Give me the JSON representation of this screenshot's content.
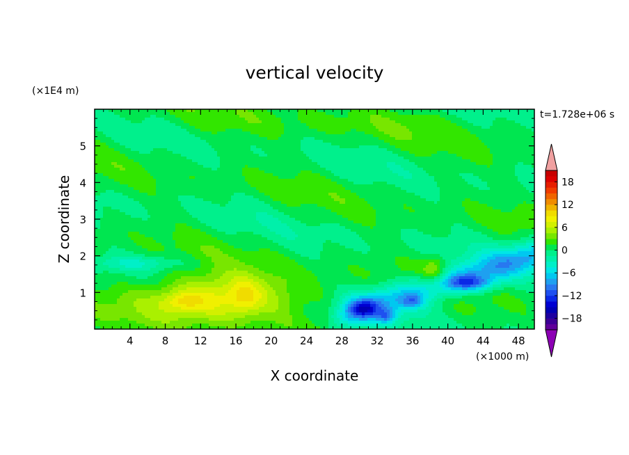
{
  "chart_data": {
    "type": "heatmap",
    "title": "vertical velocity",
    "xlabel": "X coordinate",
    "ylabel": "Z coordinate",
    "x_unit": "(×1000 m)",
    "y_unit": "(×1E4 m)",
    "time_label": "t=1.728e+06 s",
    "xlim": [
      0,
      49.8
    ],
    "ylim": [
      0,
      6.0
    ],
    "x_ticks": [
      "4",
      "8",
      "12",
      "16",
      "20",
      "24",
      "28",
      "32",
      "36",
      "40",
      "44",
      "48"
    ],
    "y_ticks": [
      "1",
      "2",
      "3",
      "4",
      "5"
    ],
    "colorbar": {
      "tick_labels": [
        "18",
        "12",
        "6",
        "0",
        "−6",
        "−12",
        "−18"
      ],
      "levels": [
        -21,
        -19.5,
        -18,
        -16.5,
        -15,
        -13.5,
        -12,
        -10.5,
        -9,
        -7.5,
        -6,
        -4.5,
        -3,
        -1.5,
        0,
        1.5,
        3,
        4.5,
        6,
        7.5,
        9,
        10.5,
        12,
        13.5,
        15,
        16.5,
        18,
        19.5,
        21
      ],
      "colors": [
        "#60009a",
        "#3c0096",
        "#1e00a0",
        "#0000b4",
        "#0000d2",
        "#0a28e6",
        "#1e50f0",
        "#2878f0",
        "#1ea0f0",
        "#00c8f0",
        "#00e6e6",
        "#00f0c8",
        "#00f0aa",
        "#00f08c",
        "#00e650",
        "#32e600",
        "#78e600",
        "#aaf000",
        "#d2f000",
        "#f0f000",
        "#f0dc00",
        "#f0b400",
        "#f08c00",
        "#f06400",
        "#f03c00",
        "#e61e00",
        "#dc0000",
        "#c80000"
      ],
      "over_color": "#f0a0a0",
      "under_color": "#8c00b4"
    },
    "features": [
      {
        "x": 10.0,
        "z": 0.78,
        "w": 14.0,
        "max": 11.5
      },
      {
        "x": 17.0,
        "z": 0.85,
        "w": 10.0,
        "max": 6.5
      },
      {
        "x": 38.5,
        "z": 1.6,
        "w": 1.5,
        "max": 6.0
      },
      {
        "x": 30.5,
        "z": 0.55,
        "w": 4.0,
        "min": -12.5
      },
      {
        "x": 33.0,
        "z": 0.35,
        "w": 2.0,
        "min": -12.0
      },
      {
        "x": 36.0,
        "z": 0.75,
        "w": 2.5,
        "min": -10.5
      },
      {
        "x": 42.5,
        "z": 1.25,
        "w": 6.0,
        "min": -14.0
      },
      {
        "x": 44.5,
        "z": 1.3,
        "w": 2.0,
        "min": -10.0
      }
    ]
  }
}
